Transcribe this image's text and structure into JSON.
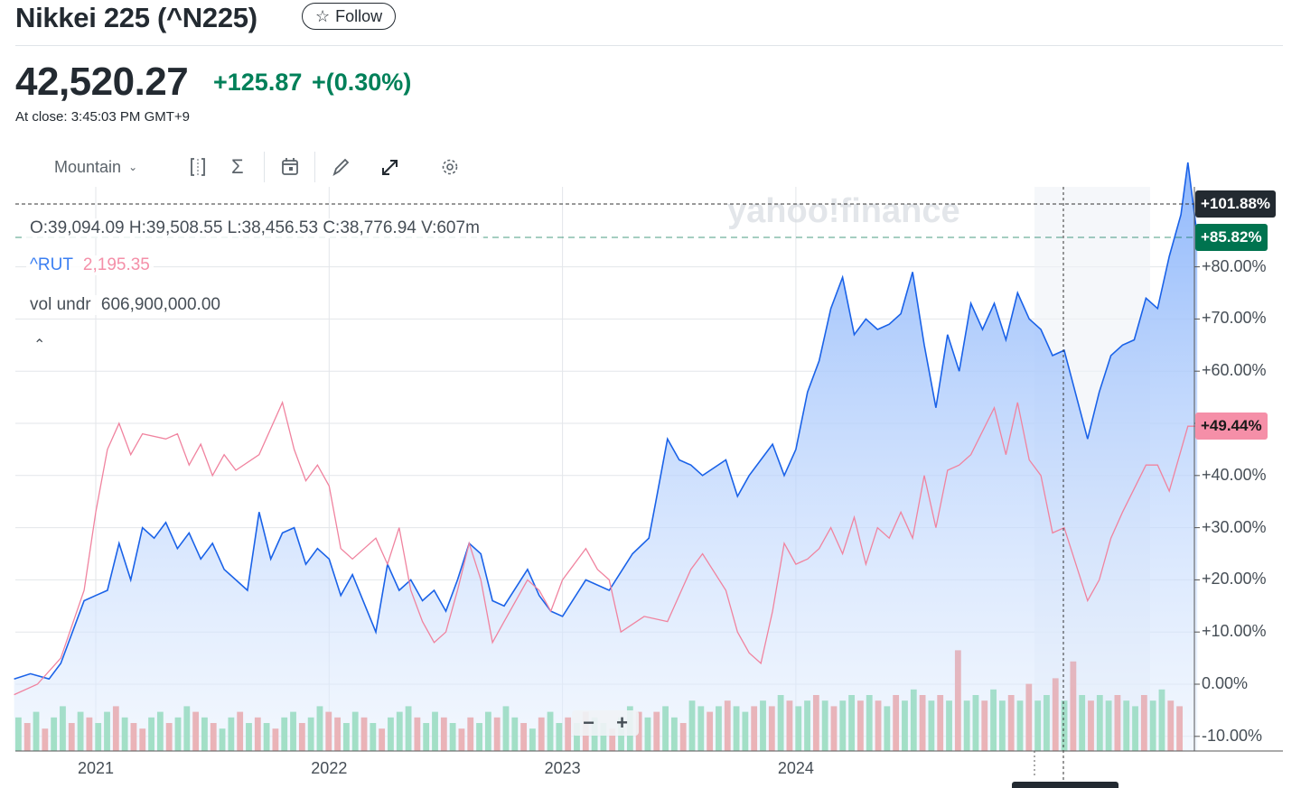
{
  "header": {
    "title": "Nikkei 225 (^N225)",
    "follow_label": "Follow",
    "price": "42,520.27",
    "change": "+125.87",
    "change_pct": "+(0.30%)",
    "close_time": "At close: 3:45:03 PM GMT+9"
  },
  "toolbar": {
    "chart_type": "Mountain",
    "icons": [
      "compare-icon",
      "indicators-sigma-icon",
      "calendar-icon",
      "draw-pencil-icon",
      "expand-icon",
      "settings-gear-icon"
    ]
  },
  "legend": {
    "ohlc": "O:39,094.09  H:39,508.55  L:38,456.53  C:38,776.94  V:607m",
    "compare_symbol": "^RUT",
    "compare_value": "2,195.35",
    "vol_label": "vol undr",
    "vol_value": "606,900,000.00"
  },
  "watermark": "yahoo!finance",
  "zoom": {
    "minus": "−",
    "plus": "+"
  },
  "colors": {
    "nikkei": "#1a62e8",
    "rut": "#f0839f",
    "up": "#5fcf8e",
    "down": "#f0766f",
    "green": "#00734f"
  },
  "chart_data": {
    "type": "line",
    "x_ticks": [
      "2021",
      "2022",
      "2023",
      "2024"
    ],
    "x_tick_years": [
      2021,
      2022,
      2023,
      2024
    ],
    "y_ticks": [
      "+80.00%",
      "+70.00%",
      "+60.00%",
      "+50.00%",
      "+40.00%",
      "+30.00%",
      "+20.00%",
      "+10.00%",
      "0.00%",
      "-10.00%"
    ],
    "y_tick_values": [
      80,
      70,
      60,
      50,
      40,
      30,
      20,
      10,
      0,
      -10
    ],
    "tags": {
      "crosshair": "+101.88%",
      "nikkei_last": "+85.82%",
      "rut_last": "+49.44%"
    },
    "series": [
      {
        "name": "^N225",
        "x": [
          2020.65,
          2020.72,
          2020.8,
          2020.85,
          2020.9,
          2020.95,
          2021.0,
          2021.05,
          2021.1,
          2021.15,
          2021.2,
          2021.25,
          2021.3,
          2021.35,
          2021.4,
          2021.45,
          2021.5,
          2021.55,
          2021.6,
          2021.65,
          2021.7,
          2021.75,
          2021.8,
          2021.85,
          2021.9,
          2021.95,
          2022.0,
          2022.05,
          2022.1,
          2022.2,
          2022.25,
          2022.3,
          2022.35,
          2022.4,
          2022.45,
          2022.5,
          2022.55,
          2022.6,
          2022.65,
          2022.7,
          2022.75,
          2022.85,
          2022.9,
          2022.95,
          2023.0,
          2023.1,
          2023.2,
          2023.3,
          2023.37,
          2023.4,
          2023.45,
          2023.5,
          2023.55,
          2023.6,
          2023.7,
          2023.75,
          2023.8,
          2023.9,
          2023.95,
          2024.0,
          2024.05,
          2024.1,
          2024.15,
          2024.2,
          2024.25,
          2024.3,
          2024.35,
          2024.4,
          2024.45,
          2024.5,
          2024.55,
          2024.6,
          2024.65,
          2024.7,
          2024.75,
          2024.8,
          2024.85,
          2024.9,
          2024.95,
          2025.0,
          2025.05,
          2025.1,
          2025.15,
          2025.25,
          2025.3,
          2025.35,
          2025.4,
          2025.45,
          2025.5,
          2025.55,
          2025.6,
          2025.65,
          2025.68,
          2025.72
        ],
        "values": [
          1,
          2,
          1,
          4,
          10,
          16,
          17,
          18,
          27,
          20,
          30,
          28,
          31,
          26,
          29,
          24,
          27,
          22,
          20,
          18,
          33,
          24,
          29,
          30,
          23,
          26,
          24,
          17,
          21,
          10,
          23,
          18,
          20,
          16,
          18,
          14,
          20,
          27,
          25,
          16,
          15,
          22,
          17,
          14,
          13,
          20,
          18,
          25,
          28,
          35,
          47,
          43,
          42,
          40,
          43,
          36,
          40,
          46,
          40,
          45,
          56,
          62,
          72,
          78,
          67,
          70,
          68,
          69,
          71,
          79,
          65,
          53,
          67,
          60,
          73,
          68,
          73,
          66,
          75,
          70,
          68,
          63,
          64,
          47,
          56,
          63,
          65,
          66,
          74,
          72,
          82,
          90,
          100,
          85.82
        ]
      },
      {
        "name": "^RUT",
        "x": [
          2020.65,
          2020.75,
          2020.85,
          2020.95,
          2021.0,
          2021.05,
          2021.1,
          2021.15,
          2021.2,
          2021.3,
          2021.35,
          2021.4,
          2021.45,
          2021.5,
          2021.55,
          2021.6,
          2021.7,
          2021.8,
          2021.85,
          2021.9,
          2021.95,
          2022.0,
          2022.05,
          2022.1,
          2022.2,
          2022.25,
          2022.3,
          2022.35,
          2022.4,
          2022.45,
          2022.5,
          2022.55,
          2022.6,
          2022.65,
          2022.7,
          2022.75,
          2022.85,
          2022.9,
          2022.95,
          2023.0,
          2023.1,
          2023.15,
          2023.2,
          2023.25,
          2023.35,
          2023.45,
          2023.55,
          2023.6,
          2023.7,
          2023.75,
          2023.8,
          2023.85,
          2023.9,
          2023.95,
          2024.0,
          2024.05,
          2024.1,
          2024.15,
          2024.2,
          2024.25,
          2024.3,
          2024.35,
          2024.4,
          2024.45,
          2024.5,
          2024.55,
          2024.6,
          2024.65,
          2024.7,
          2024.75,
          2024.85,
          2024.9,
          2024.95,
          2025.0,
          2025.05,
          2025.1,
          2025.15,
          2025.25,
          2025.3,
          2025.35,
          2025.4,
          2025.5,
          2025.55,
          2025.6,
          2025.68,
          2025.72
        ],
        "values": [
          -2,
          0,
          5,
          18,
          33,
          45,
          50,
          44,
          48,
          47,
          48,
          42,
          46,
          40,
          44,
          41,
          44,
          54,
          45,
          39,
          42,
          38,
          26,
          24,
          28,
          23,
          30,
          18,
          12,
          8,
          10,
          18,
          27,
          20,
          8,
          12,
          20,
          18,
          14,
          20,
          26,
          22,
          20,
          10,
          13,
          12,
          22,
          25,
          18,
          10,
          6,
          4,
          14,
          27,
          23,
          24,
          26,
          30,
          25,
          32,
          23,
          30,
          28,
          33,
          28,
          40,
          30,
          41,
          42,
          44,
          53,
          44,
          54,
          43,
          40,
          29,
          30,
          16,
          20,
          28,
          33,
          42,
          42,
          37,
          49.44,
          49.44
        ]
      }
    ],
    "volume": [
      6,
      5,
      7,
      4,
      6,
      8,
      5,
      7,
      6,
      5,
      7,
      8,
      6,
      5,
      4,
      6,
      7,
      5,
      6,
      8,
      7,
      6,
      5,
      4,
      6,
      7,
      5,
      6,
      5,
      4,
      6,
      7,
      5,
      6,
      8,
      7,
      6,
      5,
      7,
      6,
      5,
      4,
      6,
      7,
      8,
      6,
      5,
      7,
      6,
      5,
      4,
      6,
      5,
      7,
      6,
      8,
      6,
      5,
      4,
      6,
      7,
      5,
      6,
      5,
      7,
      6,
      5,
      4,
      6,
      8,
      7,
      6,
      7,
      8,
      6,
      5,
      9,
      8,
      7,
      8,
      9,
      8,
      7,
      8,
      9,
      8,
      10,
      9,
      8,
      9,
      10,
      9,
      8,
      9,
      10,
      9,
      10,
      9,
      8,
      10,
      9,
      11,
      10,
      9,
      10,
      9,
      18,
      9,
      10,
      9,
      11,
      9,
      10,
      9,
      12,
      9,
      10,
      13,
      9,
      16,
      10,
      9,
      10,
      9,
      10,
      9,
      8,
      10,
      9,
      11,
      9,
      8
    ],
    "volume_up": [
      1,
      0,
      1,
      0,
      1,
      1,
      0,
      1,
      0,
      1,
      1,
      0,
      1,
      0,
      0,
      1,
      1,
      0,
      1,
      1,
      0,
      1,
      0,
      1,
      1,
      0,
      1,
      0,
      1,
      0,
      1,
      1,
      0,
      1,
      1,
      0,
      0,
      1,
      1,
      0,
      1,
      0,
      1,
      1,
      1,
      0,
      1,
      1,
      0,
      1,
      0,
      0,
      1,
      1,
      0,
      1,
      1,
      0,
      1,
      0,
      1,
      1,
      0,
      1,
      0,
      1,
      1,
      0,
      1,
      1,
      0,
      1,
      0,
      1,
      1,
      0,
      1,
      1,
      0,
      1,
      0,
      1,
      1,
      0,
      1,
      0,
      1,
      0,
      1,
      1,
      0,
      1,
      0,
      1,
      1,
      0,
      1,
      0,
      1,
      0,
      1,
      1,
      0,
      1,
      0,
      1,
      0,
      1,
      1,
      0,
      1,
      1,
      0,
      1,
      0,
      1,
      1,
      0,
      1,
      0,
      1,
      0,
      1,
      1,
      0,
      1,
      1,
      0,
      1,
      1,
      0,
      0
    ]
  }
}
